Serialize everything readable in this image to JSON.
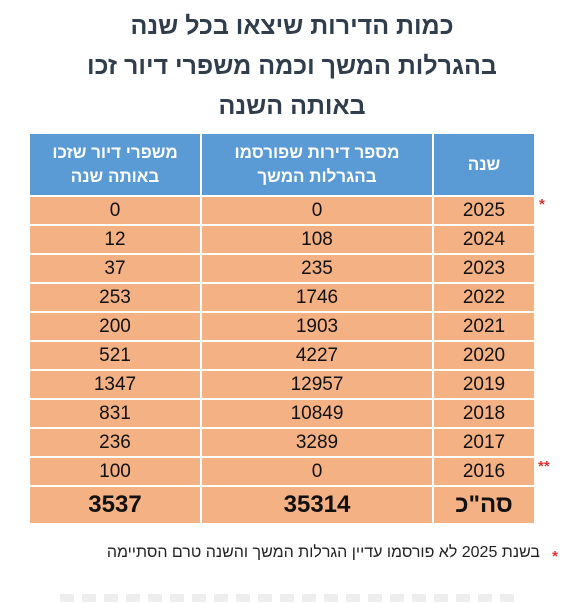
{
  "title": {
    "line1": "כמות הדירות שיצאו בכל שנה",
    "line2": "בהגרלות המשך וכמה משפרי דיור זכו",
    "line3": "באותה השנה"
  },
  "table": {
    "headers": {
      "year": "שנה",
      "apartments": "מספר דירות שפורסמו בהגרלות המשך",
      "winners": "משפרי דיור שזכו באותה שנה"
    },
    "rows": [
      {
        "year": "2025",
        "apartments": "0",
        "winners": "0",
        "mark": "*"
      },
      {
        "year": "2024",
        "apartments": "108",
        "winners": "12",
        "mark": ""
      },
      {
        "year": "2023",
        "apartments": "235",
        "winners": "37",
        "mark": ""
      },
      {
        "year": "2022",
        "apartments": "1746",
        "winners": "253",
        "mark": ""
      },
      {
        "year": "2021",
        "apartments": "1903",
        "winners": "200",
        "mark": ""
      },
      {
        "year": "2020",
        "apartments": "4227",
        "winners": "521",
        "mark": ""
      },
      {
        "year": "2019",
        "apartments": "12957",
        "winners": "1347",
        "mark": ""
      },
      {
        "year": "2018",
        "apartments": "10849",
        "winners": "831",
        "mark": ""
      },
      {
        "year": "2017",
        "apartments": "3289",
        "winners": "236",
        "mark": ""
      },
      {
        "year": "2016",
        "apartments": "0",
        "winners": "100",
        "mark": "**"
      }
    ],
    "total": {
      "label": "סה\"כ",
      "apartments": "35314",
      "winners": "3537"
    }
  },
  "footnote": {
    "mark": "*",
    "text": "בשנת 2025 לא פורסמו עדיין הגרלות המשך והשנה טרם הסתיימה"
  },
  "colors": {
    "header_bg": "#5b9bd5",
    "row_bg": "#f4b183",
    "title_text": "#2f3d4c",
    "mark": "#e03030"
  }
}
